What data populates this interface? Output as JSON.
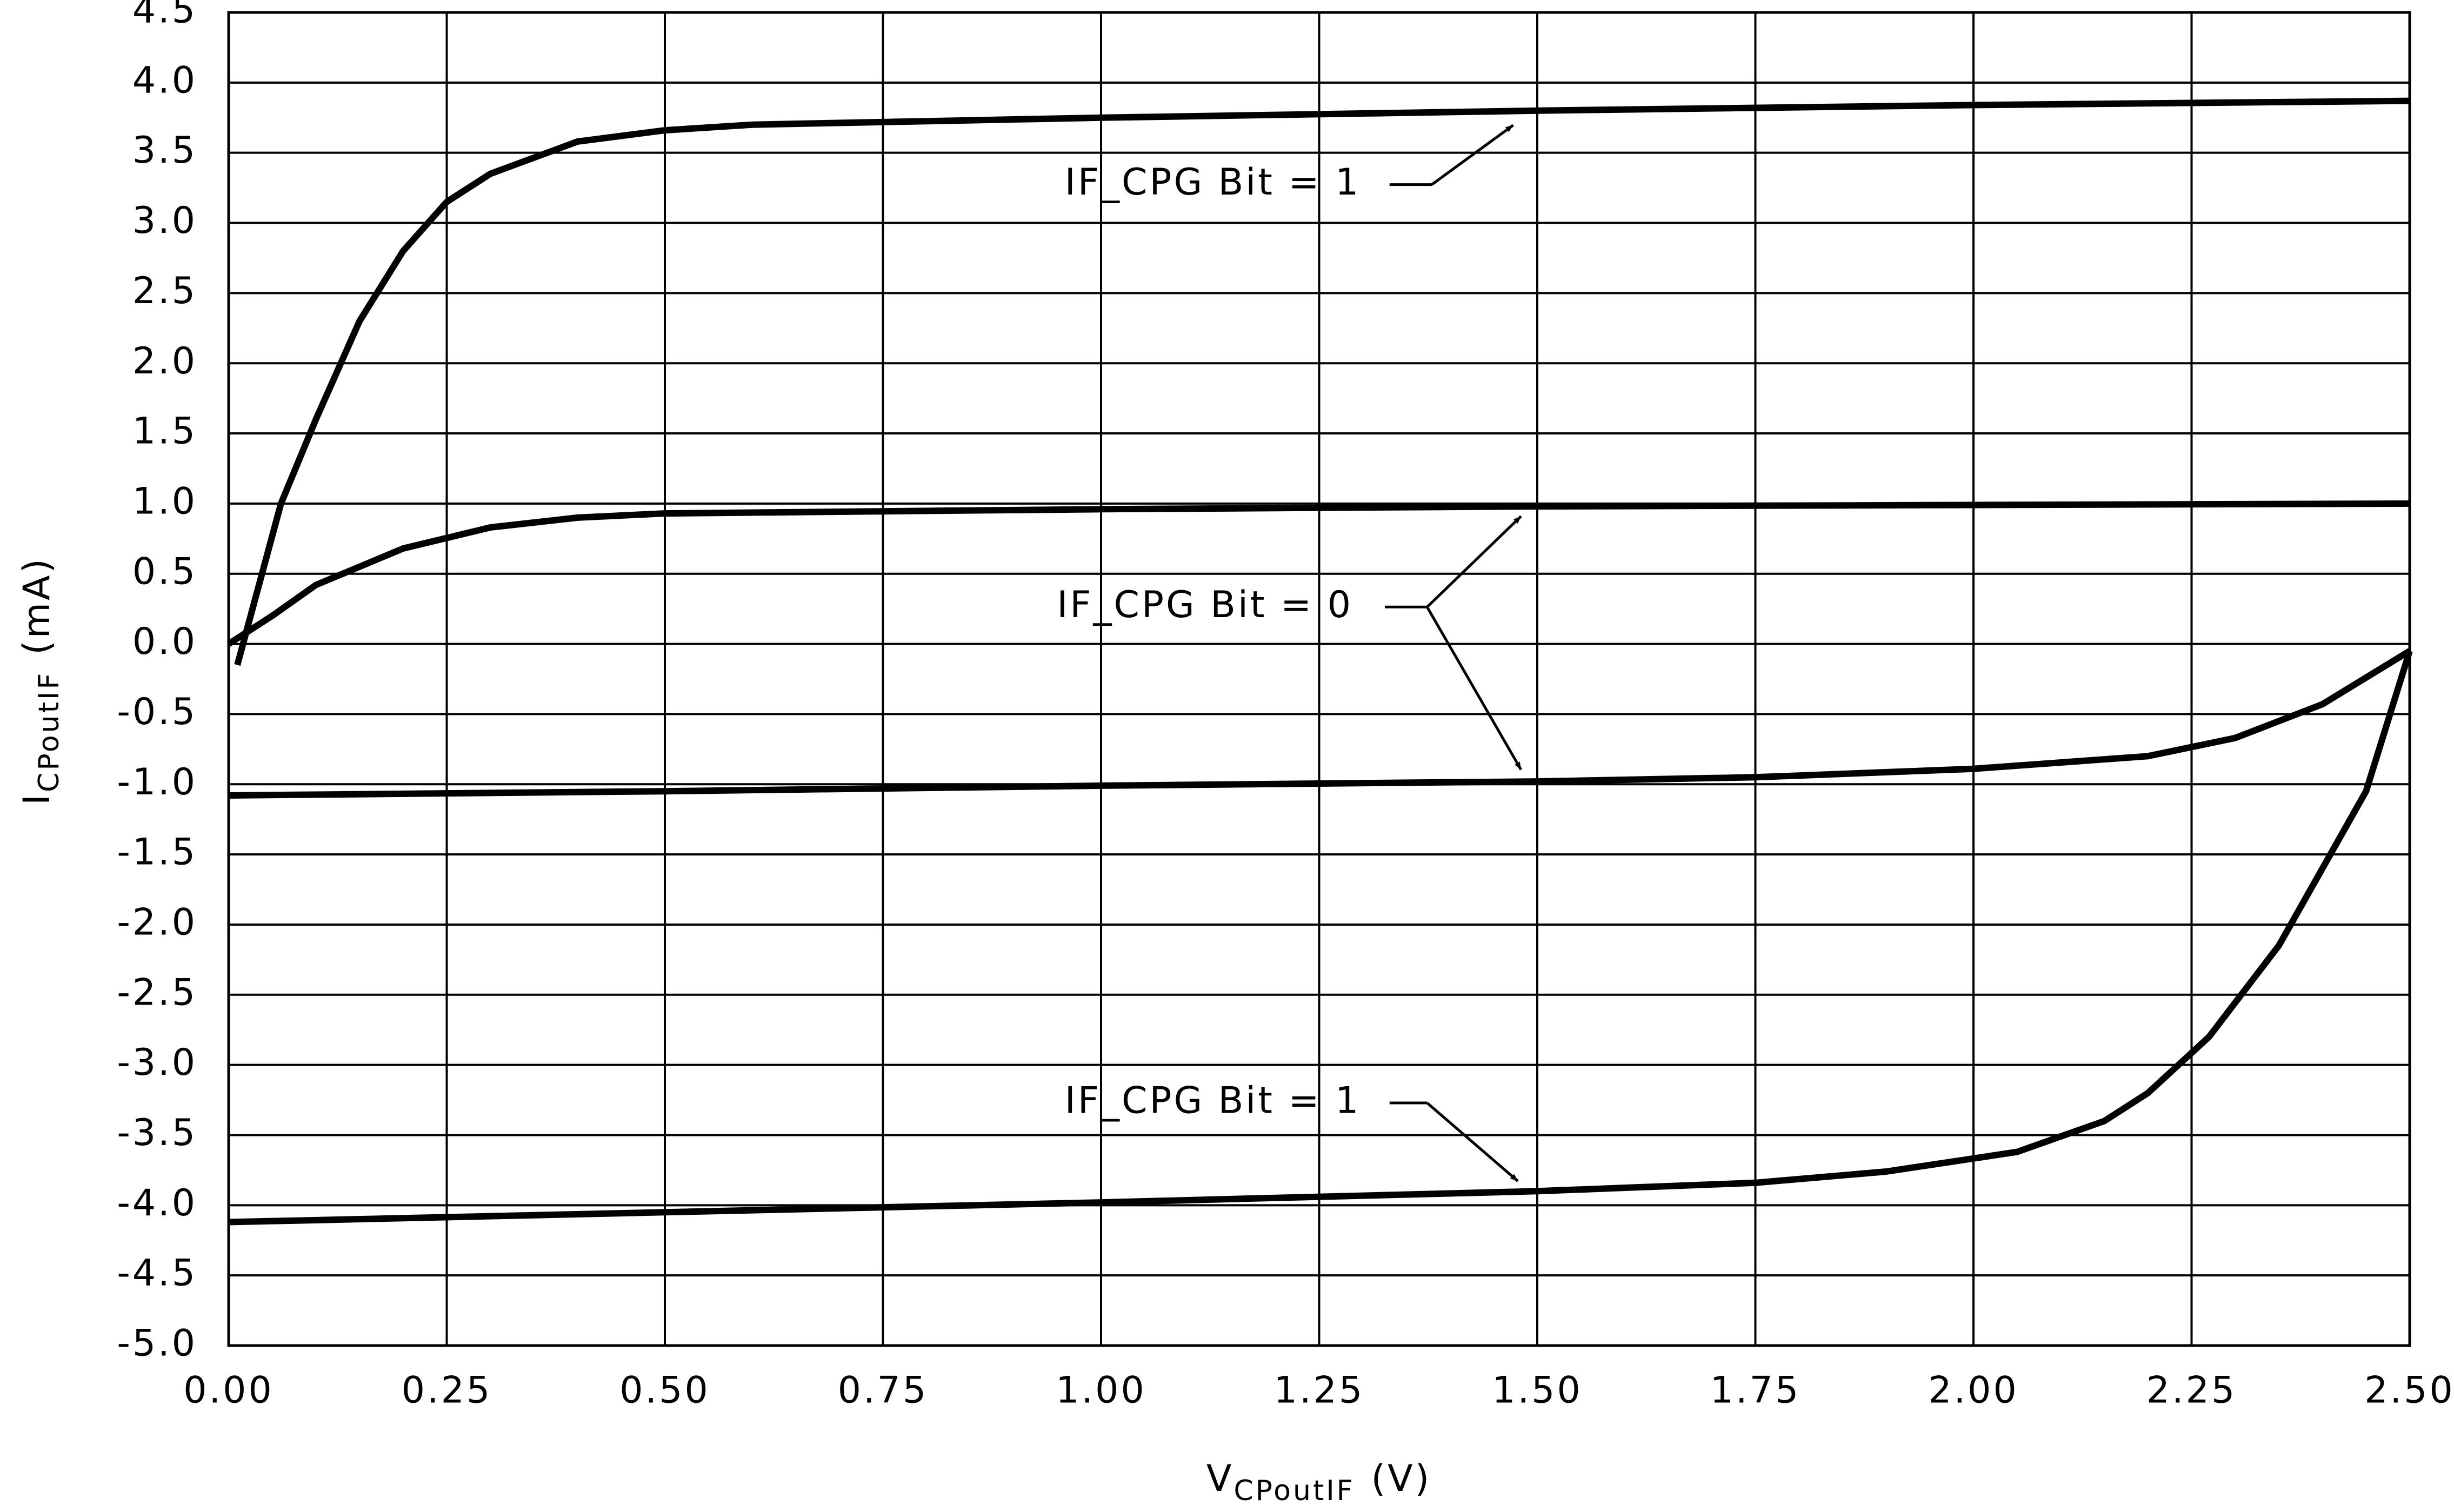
{
  "chart_data": {
    "type": "line",
    "xlabel": "V",
    "xlabel_sub": "CPoutIF",
    "xlabel_unit": "(V)",
    "ylabel": "I",
    "ylabel_sub": "CPoutIF",
    "ylabel_unit": "(mA)",
    "xlim": [
      0,
      2.5
    ],
    "xticks": [
      {
        "value": 0,
        "label": "0.00"
      },
      {
        "value": 0.25,
        "label": "0.25"
      },
      {
        "value": 0.5,
        "label": "0.50"
      },
      {
        "value": 0.75,
        "label": "0.75"
      },
      {
        "value": 1,
        "label": "1.00"
      },
      {
        "value": 1.25,
        "label": "1.25"
      },
      {
        "value": 1.5,
        "label": "1.50"
      },
      {
        "value": 1.75,
        "label": "1.75"
      },
      {
        "value": 2,
        "label": "2.00"
      },
      {
        "value": 2.25,
        "label": "2.25"
      },
      {
        "value": 2.5,
        "label": "2.50"
      }
    ],
    "ylim": [
      -5,
      4.5
    ],
    "yticks": [
      4.5,
      {
        "value": 4,
        "label": "4.0"
      },
      3.5,
      {
        "value": 3,
        "label": "3.0"
      },
      2.5,
      {
        "value": 2,
        "label": "2.0"
      },
      1.5,
      {
        "value": 1,
        "label": "1.0"
      },
      0.5,
      {
        "value": 0,
        "label": "0.0"
      },
      -0.5,
      {
        "value": -1,
        "label": "-1.0"
      },
      -1.5,
      {
        "value": -2,
        "label": "-2.0"
      },
      -2.5,
      {
        "value": -3,
        "label": "-3.0"
      },
      -3.5,
      {
        "value": -4,
        "label": "-4.0"
      },
      -4.5,
      {
        "value": -5,
        "label": "-5.0"
      }
    ],
    "grid": true,
    "series": [
      {
        "color": "#000000",
        "x": [
          0.01,
          0.06,
          0.1,
          0.15,
          0.2,
          0.25,
          0.3,
          0.4,
          0.5,
          0.6,
          1.0,
          1.5,
          2.0,
          2.5
        ],
        "values": [
          -0.15,
          1.0,
          1.6,
          2.3,
          2.8,
          3.15,
          3.35,
          3.58,
          3.66,
          3.7,
          3.75,
          3.8,
          3.84,
          3.87
        ]
      },
      {
        "color": "#000000",
        "x": [
          0,
          0.05,
          0.1,
          0.2,
          0.3,
          0.4,
          0.5,
          1.0,
          1.5,
          2.0,
          2.5
        ],
        "values": [
          0,
          0.2,
          0.42,
          0.68,
          0.83,
          0.9,
          0.93,
          0.96,
          0.98,
          0.99,
          1.0
        ]
      },
      {
        "color": "#000000",
        "x": [
          0,
          0.5,
          1.0,
          1.5,
          1.75,
          2.0,
          2.2,
          2.3,
          2.4,
          2.5
        ],
        "values": [
          -1.08,
          -1.05,
          -1.01,
          -0.98,
          -0.95,
          -0.89,
          -0.8,
          -0.67,
          -0.43,
          -0.05
        ]
      },
      {
        "color": "#000000",
        "x": [
          0,
          0.5,
          1.0,
          1.5,
          1.75,
          1.9,
          2.05,
          2.15,
          2.2,
          2.27,
          2.35,
          2.45,
          2.5
        ],
        "values": [
          -4.12,
          -4.05,
          -3.98,
          -3.9,
          -3.84,
          -3.76,
          -3.62,
          -3.4,
          -3.2,
          -2.8,
          -2.15,
          -1.05,
          -0.05
        ]
      }
    ],
    "annotations": [
      "IF_CPG Bit = 1",
      "IF_CPG Bit = 0",
      "IF_CPG Bit = 1"
    ]
  }
}
